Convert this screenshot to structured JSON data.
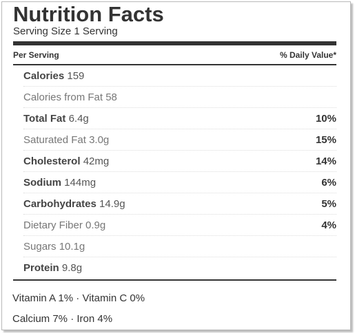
{
  "title": "Nutrition Facts",
  "serving": "Serving Size 1 Serving",
  "header": {
    "per_serving": "Per Serving",
    "daily_value": "% Daily Value*"
  },
  "rows": [
    {
      "label": "Calories",
      "value": "159",
      "dv": "",
      "bold": true,
      "sub": false
    },
    {
      "label": "Calories from Fat",
      "value": "58",
      "dv": "",
      "bold": false,
      "sub": true
    },
    {
      "label": "Total Fat",
      "value": "6.4g",
      "dv": "10%",
      "bold": true,
      "sub": false
    },
    {
      "label": "Saturated Fat",
      "value": "3.0g",
      "dv": "15%",
      "bold": false,
      "sub": true
    },
    {
      "label": "Cholesterol",
      "value": "42mg",
      "dv": "14%",
      "bold": true,
      "sub": false
    },
    {
      "label": "Sodium",
      "value": "144mg",
      "dv": "6%",
      "bold": true,
      "sub": false
    },
    {
      "label": "Carbohydrates",
      "value": "14.9g",
      "dv": "5%",
      "bold": true,
      "sub": false
    },
    {
      "label": "Dietary Fiber",
      "value": "0.9g",
      "dv": "4%",
      "bold": false,
      "sub": true
    },
    {
      "label": "Sugars",
      "value": "10.1g",
      "dv": "",
      "bold": false,
      "sub": true
    },
    {
      "label": "Protein",
      "value": "9.8g",
      "dv": "",
      "bold": true,
      "sub": false
    }
  ],
  "vitamins_line": "Vitamin A 1% · Vitamin C 0%",
  "minerals_line": "Calcium 7% · Iron 4%"
}
